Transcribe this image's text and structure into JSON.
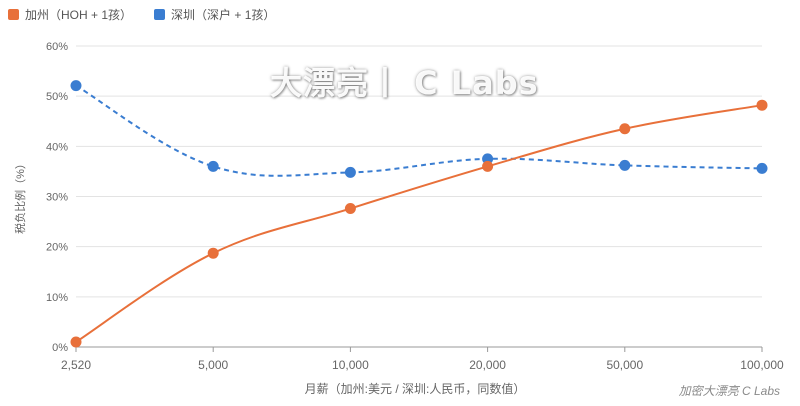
{
  "watermark": "大漂亮丨 C Labs",
  "credit": "加密大漂亮 C Labs",
  "colors": {
    "ca": "#e8703a",
    "sz": "#3a7dd1",
    "grid": "#e3e3e3",
    "axis": "#999999",
    "tick": "#666666"
  },
  "chart_data": {
    "type": "line",
    "categories": [
      "2,520",
      "5,000",
      "10,000",
      "20,000",
      "50,000",
      "100,000"
    ],
    "series": [
      {
        "name": "加州（HOH + 1孩）",
        "values": [
          1,
          18.7,
          27.6,
          36,
          43.5,
          48.2
        ],
        "style": "solid",
        "color": "#e8703a"
      },
      {
        "name": "深圳（深户 + 1孩）",
        "values": [
          52.1,
          36,
          34.8,
          37.5,
          36.2,
          35.6
        ],
        "style": "dashed",
        "color": "#3a7dd1"
      }
    ],
    "y_ticks": [
      "0%",
      "10%",
      "20%",
      "30%",
      "40%",
      "50%",
      "60%"
    ],
    "ylim": [
      0,
      60
    ],
    "xlabel": "月薪（加州:美元 / 深圳:人民币，同数值）",
    "ylabel": "税负比例（%）",
    "grid": true,
    "legend": "top-left"
  }
}
